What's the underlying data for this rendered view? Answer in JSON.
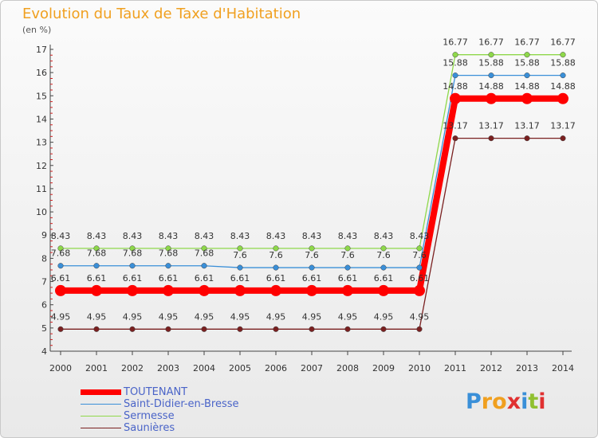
{
  "title": "Evolution du Taux de Taxe d'Habitation",
  "unit": "(en %)",
  "logo": {
    "text": "Proxiti",
    "letters": [
      "P",
      "r",
      "o",
      "x",
      "i",
      "t",
      "i"
    ],
    "colors": [
      "#3a8fd8",
      "#f0a020",
      "#f0a020",
      "#e03030",
      "#3a8fd8",
      "#90c030",
      "#e03030"
    ]
  },
  "chart_data": {
    "type": "line",
    "title": "Evolution du Taux de Taxe d'Habitation",
    "ylabel": "(en %)",
    "xlabel": "",
    "ylim": [
      4,
      17
    ],
    "yticks": [
      4,
      5,
      6,
      7,
      8,
      9,
      10,
      11,
      12,
      13,
      14,
      15,
      16,
      17
    ],
    "x": [
      2000,
      2001,
      2002,
      2003,
      2004,
      2005,
      2006,
      2007,
      2008,
      2009,
      2010,
      2011,
      2012,
      2013,
      2014
    ],
    "series": [
      {
        "name": "TOUTENANT",
        "color": "#ff0000",
        "values": [
          6.61,
          6.61,
          6.61,
          6.61,
          6.61,
          6.61,
          6.61,
          6.61,
          6.61,
          6.61,
          6.61,
          14.88,
          14.88,
          14.88,
          14.88
        ],
        "labels": [
          "6.61",
          "6.61",
          "6.61",
          "6.61",
          "6.61",
          "6.61",
          "6.61",
          "6.61",
          "6.61",
          "6.61",
          "6.61",
          "14.88",
          "14.88",
          "14.88",
          "14.88"
        ]
      },
      {
        "name": "Saint-Didier-en-Bresse",
        "color": "#3a8fd8",
        "values": [
          7.68,
          7.68,
          7.68,
          7.68,
          7.68,
          7.6,
          7.6,
          7.6,
          7.6,
          7.6,
          7.6,
          15.88,
          15.88,
          15.88,
          15.88
        ],
        "labels": [
          "7.68",
          "7.68",
          "7.68",
          "7.68",
          "7.68",
          "7.6",
          "7.6",
          "7.6",
          "7.6",
          "7.6",
          "7.6",
          "15.88",
          "15.88",
          "15.88",
          "15.88"
        ]
      },
      {
        "name": "Sermesse",
        "color": "#8ed84a",
        "values": [
          8.43,
          8.43,
          8.43,
          8.43,
          8.43,
          8.43,
          8.43,
          8.43,
          8.43,
          8.43,
          8.43,
          16.77,
          16.77,
          16.77,
          16.77
        ],
        "labels": [
          "8.43",
          "8.43",
          "8.43",
          "8.43",
          "8.43",
          "8.43",
          "8.43",
          "8.43",
          "8.43",
          "8.43",
          "8.43",
          "16.77",
          "16.77",
          "16.77",
          "16.77"
        ]
      },
      {
        "name": "Saunières",
        "color": "#7a2020",
        "values": [
          4.95,
          4.95,
          4.95,
          4.95,
          4.95,
          4.95,
          4.95,
          4.95,
          4.95,
          4.95,
          4.95,
          13.17,
          13.17,
          13.17,
          13.17
        ],
        "labels": [
          "4.95",
          "4.95",
          "4.95",
          "4.95",
          "4.95",
          "4.95",
          "4.95",
          "4.95",
          "4.95",
          "4.95",
          "4.95",
          "13.17",
          "13.17",
          "13.17",
          "13.17"
        ]
      }
    ]
  }
}
